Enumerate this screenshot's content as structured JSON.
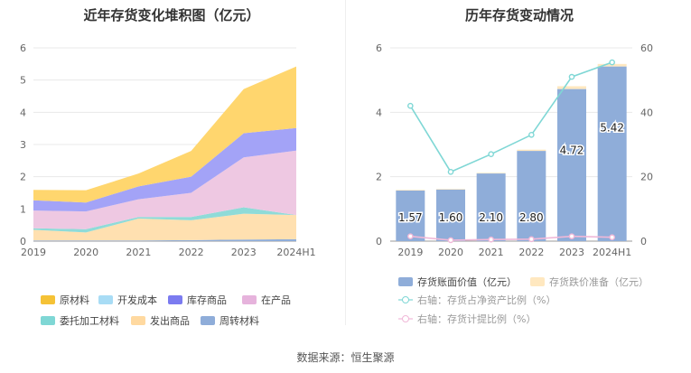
{
  "charts": {
    "left_title": "近年存货变化堆积图（亿元）",
    "right_title": "历年存货变动情况"
  },
  "source": "数据来源：恒生聚源",
  "chart_data": [
    {
      "type": "area",
      "title": "近年存货变化堆积图（亿元）",
      "categories": [
        "2019",
        "2020",
        "2021",
        "2022",
        "2023",
        "2024H1"
      ],
      "ylim": [
        0,
        6
      ],
      "yticks": [
        0,
        1,
        2,
        3,
        4,
        5,
        6
      ],
      "stack_order": [
        "周转材料",
        "发出商品",
        "委托加工材料",
        "在产品",
        "库存商品",
        "开发成本",
        "原材料"
      ],
      "series": [
        {
          "name": "周转材料",
          "color": "#8fadd9",
          "values": [
            0.02,
            0.02,
            0.02,
            0.03,
            0.05,
            0.06
          ]
        },
        {
          "name": "发出商品",
          "color": "#ffe0b0",
          "values": [
            0.33,
            0.25,
            0.68,
            0.62,
            0.8,
            0.75
          ]
        },
        {
          "name": "委托加工材料",
          "color": "#8fdbd8",
          "values": [
            0.05,
            0.1,
            0.05,
            0.1,
            0.2,
            0.0
          ]
        },
        {
          "name": "在产品",
          "color": "#eec8e2",
          "values": [
            0.55,
            0.55,
            0.55,
            0.75,
            1.55,
            2.0
          ]
        },
        {
          "name": "库存商品",
          "color": "#a3a3f7",
          "values": [
            0.32,
            0.28,
            0.4,
            0.5,
            0.75,
            0.7
          ]
        },
        {
          "name": "开发成本",
          "color": "#a8dcf5",
          "values": [
            0.0,
            0.0,
            0.0,
            0.0,
            0.0,
            0.0
          ]
        },
        {
          "name": "原材料",
          "color": "#ffd66e",
          "values": [
            0.32,
            0.38,
            0.4,
            0.8,
            1.37,
            1.91
          ]
        }
      ],
      "legend": [
        {
          "name": "原材料",
          "color": "#f5c236"
        },
        {
          "name": "开发成本",
          "color": "#a8dcf5"
        },
        {
          "name": "库存商品",
          "color": "#7b7bf0"
        },
        {
          "name": "在产品",
          "color": "#e6b3dc"
        },
        {
          "name": "委托加工材料",
          "color": "#7fd7d5"
        },
        {
          "name": "发出商品",
          "color": "#ffd9a0"
        },
        {
          "name": "周转材料",
          "color": "#8fadd9"
        }
      ]
    },
    {
      "type": "bar",
      "title": "历年存货变动情况",
      "categories": [
        "2019",
        "2020",
        "2021",
        "2022",
        "2023",
        "2024H1"
      ],
      "ylim": [
        0,
        6
      ],
      "yticks": [
        0,
        2,
        4,
        6
      ],
      "y2lim": [
        0,
        60
      ],
      "y2ticks": [
        0,
        20,
        40,
        60
      ],
      "bars": [
        {
          "name": "存货账面价值（亿元）",
          "color": "#8fadd9",
          "values": [
            1.57,
            1.6,
            2.1,
            2.8,
            4.72,
            5.42
          ],
          "labels": [
            "1.57",
            "1.60",
            "2.10",
            "2.80",
            "4.72",
            "5.42"
          ]
        },
        {
          "name": "存货跌价准备（亿元）",
          "color": "#ffe8c0",
          "values": [
            0.02,
            0.02,
            0.02,
            0.04,
            0.09,
            0.08
          ]
        }
      ],
      "lines": [
        {
          "name": "右轴：存货占净资产比例（%）",
          "color": "#7fd7d5",
          "axis": "right",
          "values": [
            42,
            21.5,
            27,
            33,
            51,
            55.5
          ]
        },
        {
          "name": "右轴：存货计提比例（%）",
          "color": "#f0b8d8",
          "axis": "right",
          "values": [
            1.5,
            0.3,
            0.5,
            0.6,
            1.5,
            1.2
          ]
        }
      ]
    }
  ]
}
